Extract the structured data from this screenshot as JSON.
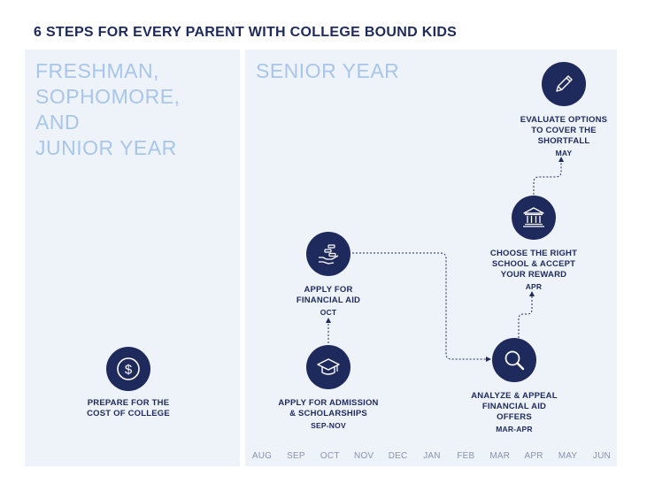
{
  "title": "6 STEPS FOR EVERY PARENT WITH COLLEGE BOUND KIDS",
  "left_panel": {
    "heading_lines": [
      "FRESHMAN,",
      "SOPHOMORE,",
      "AND",
      "JUNIOR YEAR"
    ]
  },
  "right_panel": {
    "heading": "SENIOR YEAR"
  },
  "steps": [
    {
      "label": "PREPARE FOR THE\nCOST OF COLLEGE",
      "date": "",
      "icon": "dollar-coin-icon"
    },
    {
      "label": "APPLY FOR ADMISSION\n& SCHOLARSHIPS",
      "date": "SEP-NOV",
      "icon": "graduation-cap-icon"
    },
    {
      "label": "APPLY FOR\nFINANCIAL AID",
      "date": "OCT",
      "icon": "hand-money-icon"
    },
    {
      "label": "ANALYZE & APPEAL\nFINANCIAL AID\nOFFERS",
      "date": "MAR-APR",
      "icon": "magnifier-icon"
    },
    {
      "label": "CHOOSE THE RIGHT\nSCHOOL & ACCEPT\nYOUR REWARD",
      "date": "APR",
      "icon": "institution-icon"
    },
    {
      "label": "EVALUATE OPTIONS\nTO COVER THE\nSHORTFALL",
      "date": "MAY",
      "icon": "pencil-icon"
    }
  ],
  "timeline": {
    "months": [
      "AUG",
      "SEP",
      "OCT",
      "NOV",
      "DEC",
      "JAN",
      "FEB",
      "MAR",
      "APR",
      "MAY",
      "JUN"
    ]
  },
  "colors": {
    "navy": "#1f2a5c",
    "panel_bg": "#eef3fa",
    "heading_blue": "#a9c5e8",
    "month_gray": "#8a93ad"
  }
}
